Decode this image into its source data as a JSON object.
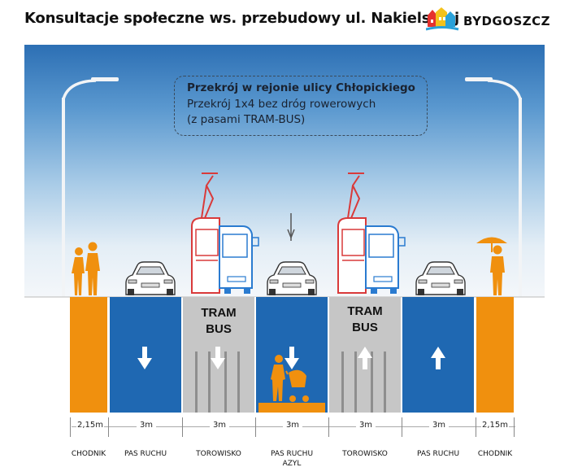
{
  "header": {
    "title": "Konsultacje społeczne ws. przebudowy ul. Nakielskiej",
    "logo_text": "BYDGOSZCZ"
  },
  "infobox": {
    "title": "Przekrój w rejonie ulicy Chłopickiego",
    "line2": "Przekrój 1x4 bez dróg rowerowych",
    "line3": "(z pasami TRAM-BUS)"
  },
  "colors": {
    "sidewalk": "#f0900e",
    "traffic_lane": "#1f68b2",
    "track": "#c6c6c6",
    "sky_top": "#2c6fb4"
  },
  "lanes": [
    {
      "id": "sidewalk-left",
      "label_top": "",
      "arrow": "none",
      "width": "2,15m",
      "caption": "CHODNIK",
      "caption2": ""
    },
    {
      "id": "traffic-lane-left",
      "label_top": "",
      "arrow": "down",
      "width": "3m",
      "caption": "PAS RUCHU",
      "caption2": ""
    },
    {
      "id": "track-left",
      "label_top": "TRAM",
      "label_top2": "BUS",
      "arrow": "down",
      "width": "3m",
      "caption": "TOROWISKO",
      "caption2": ""
    },
    {
      "id": "traffic-lane-center",
      "label_top": "",
      "arrow": "down",
      "width": "3m",
      "caption": "PAS RUCHU",
      "caption2": "AZYL"
    },
    {
      "id": "track-right",
      "label_top": "TRAM",
      "label_top2": "BUS",
      "arrow": "up",
      "width": "3m",
      "caption": "TOROWISKO",
      "caption2": ""
    },
    {
      "id": "traffic-lane-right",
      "label_top": "",
      "arrow": "up",
      "width": "3m",
      "caption": "PAS RUCHU",
      "caption2": ""
    },
    {
      "id": "sidewalk-right",
      "label_top": "",
      "arrow": "none",
      "width": "2,15m",
      "caption": "CHODNIK",
      "caption2": ""
    }
  ]
}
